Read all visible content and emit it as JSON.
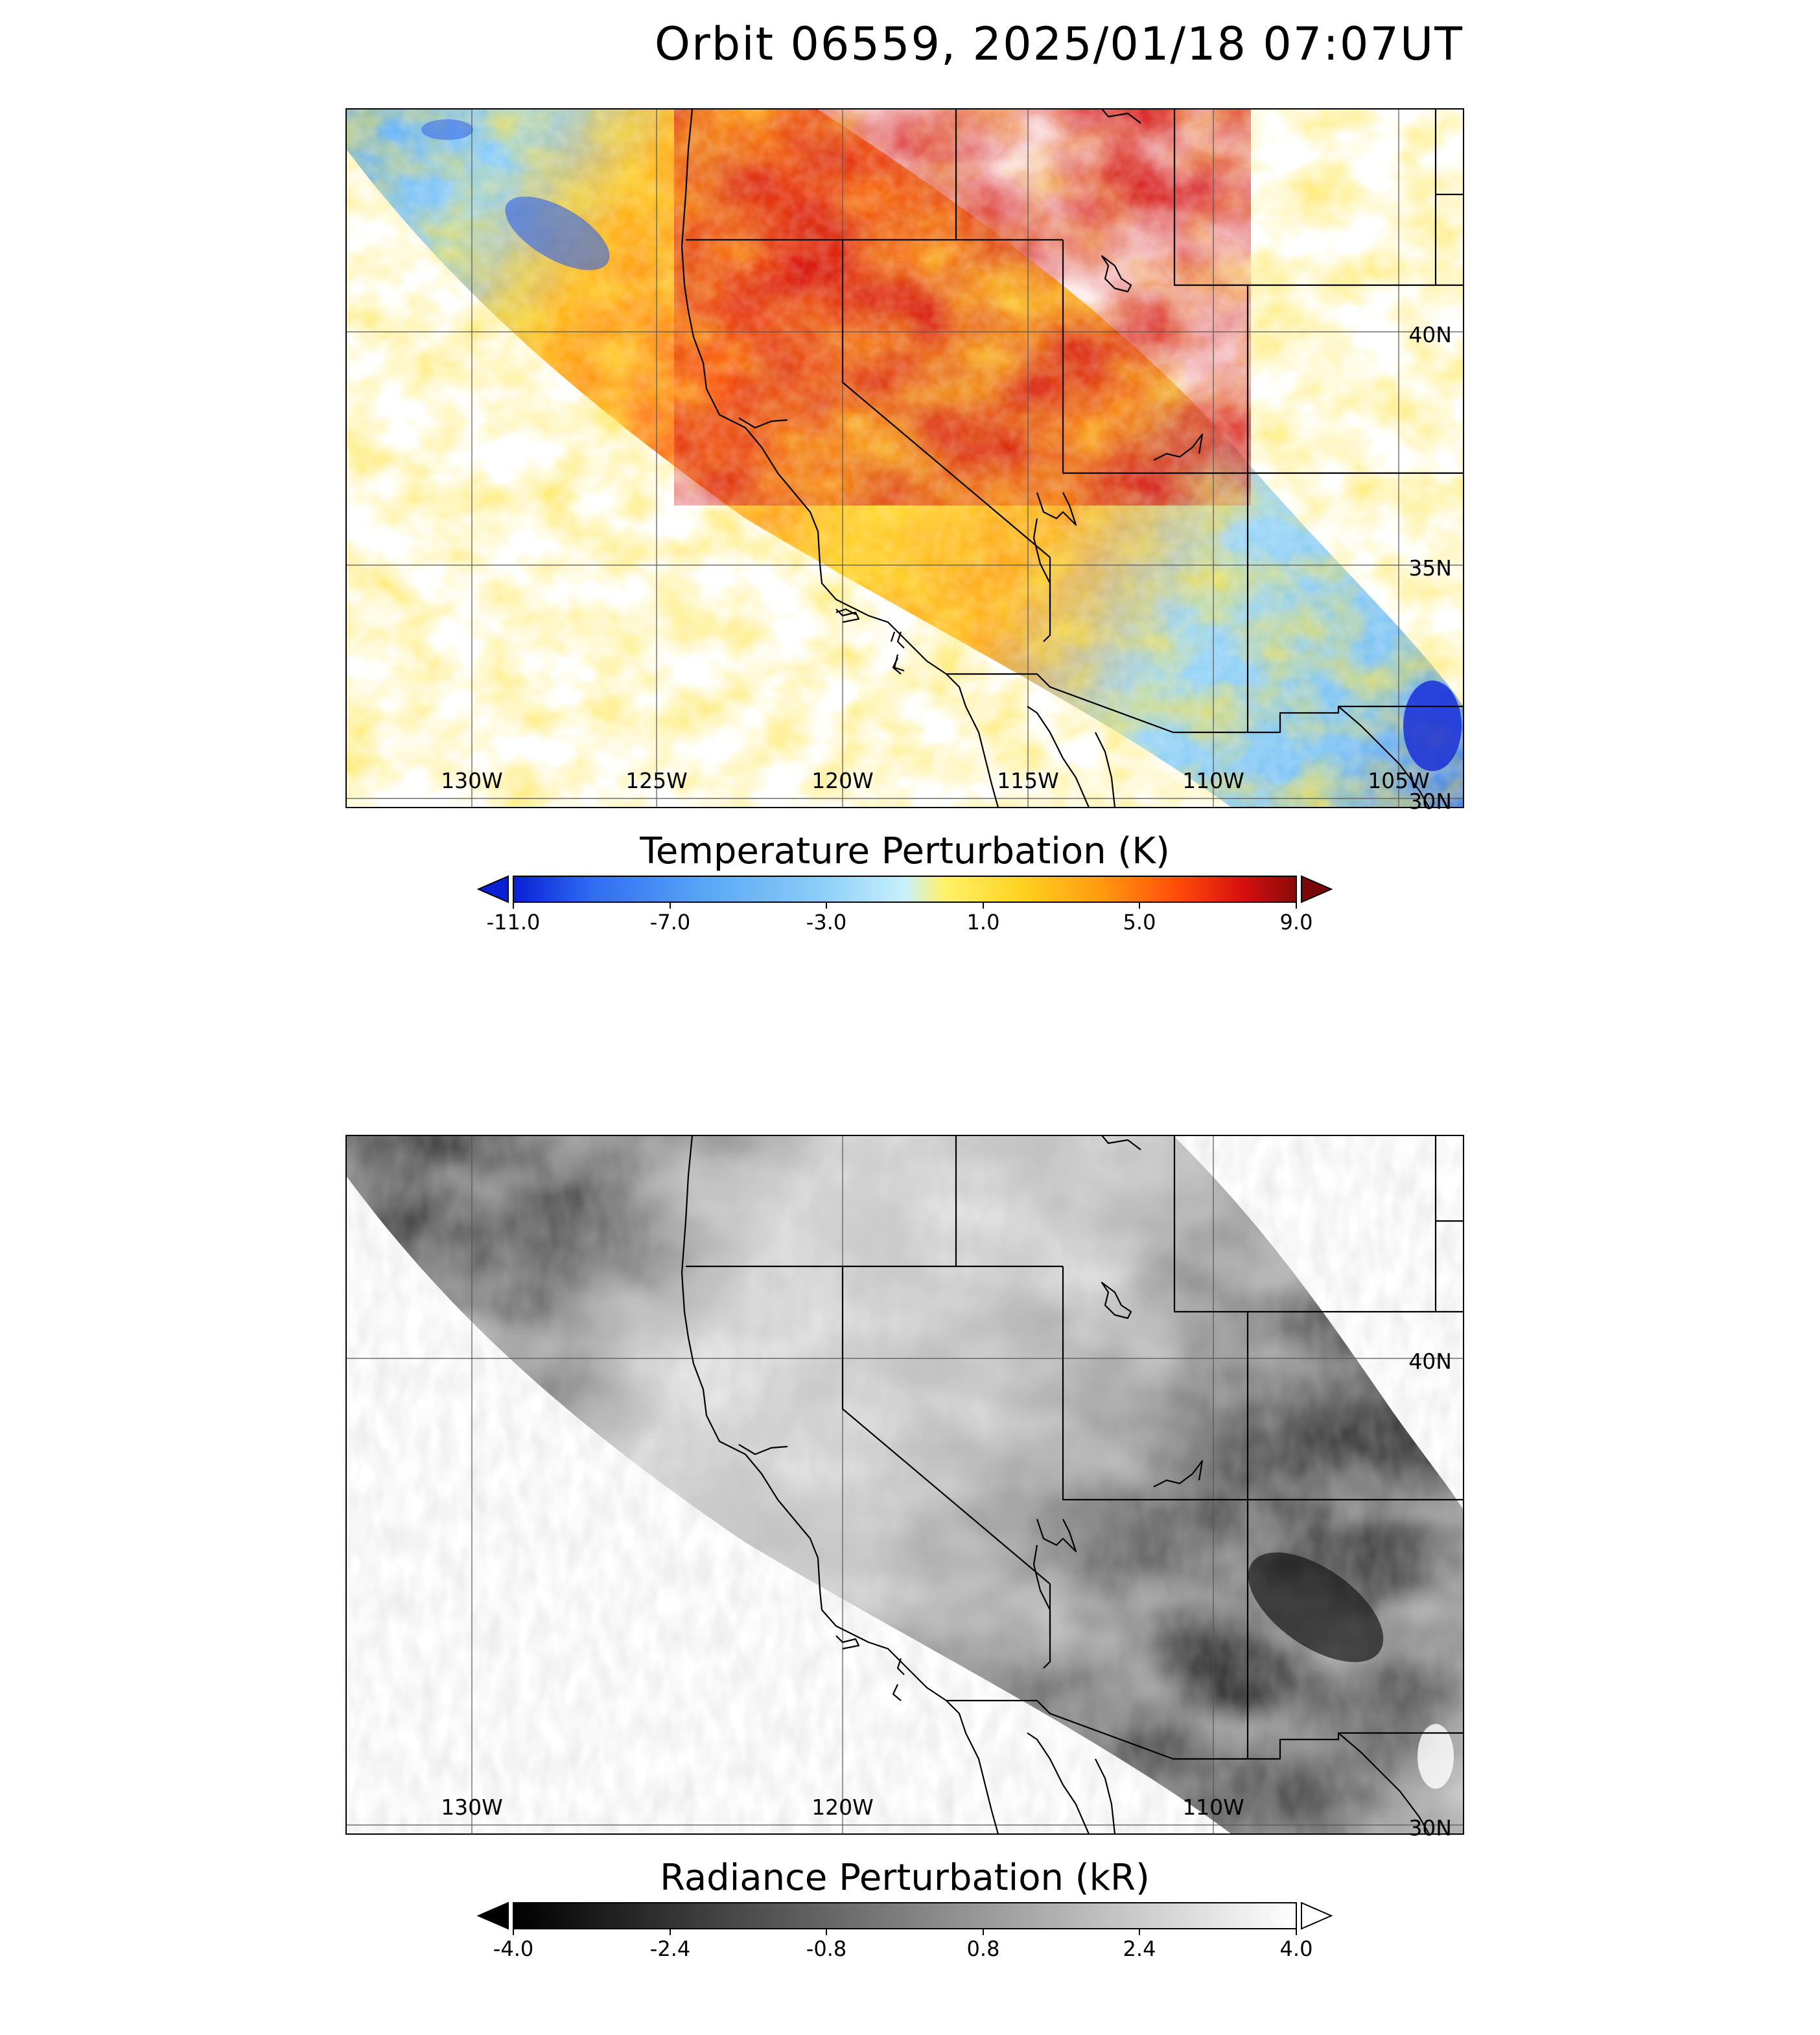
{
  "figure": {
    "title": "Orbit 06559, 2025/01/18 07:07UT"
  },
  "colors": {
    "temp_gradient": [
      "#0a1fd6",
      "#2f6cf2",
      "#5aa8f5",
      "#8fd0f8",
      "#c8f0fb",
      "#fff26a",
      "#ffd21f",
      "#ff9a10",
      "#ff4a0a",
      "#d81010",
      "#8a0a0a"
    ],
    "temp_under": "#0a1fd6",
    "temp_over": "#7a0808",
    "rad_gradient": [
      "#000000",
      "#ffffff"
    ],
    "rad_under": "#000000",
    "rad_over": "#ffffff"
  },
  "chart_data": [
    {
      "type": "heatmap",
      "title": "",
      "panel": "temperature",
      "colorbar_label": "Temperature Perturbation (K)",
      "colorbar_ticks": [
        "-11.0",
        "-7.0",
        "-3.0",
        "1.0",
        "5.0",
        "9.0"
      ],
      "colorbar_range": [
        -11.0,
        9.0
      ],
      "colorbar_extend": "both",
      "lon_ticks": [
        "130W",
        "125W",
        "120W",
        "115W",
        "110W",
        "105W"
      ],
      "lat_ticks": [
        "40N",
        "35N",
        "30N"
      ],
      "lon_range": [
        -133.4,
        -103.2
      ],
      "lat_range": [
        30.0,
        44.7
      ],
      "swath_values": "perturbations roughly -11 to +9 K; warm (+5 to +9 K) over northern California/Oregon/Nevada, cool (-3 to -9 K) over Pacific and southeastern swath edge"
    },
    {
      "type": "heatmap",
      "title": "",
      "panel": "radiance",
      "colorbar_label": "Radiance Perturbation (kR)",
      "colorbar_ticks": [
        "-4.0",
        "-2.4",
        "-0.8",
        "0.8",
        "2.4",
        "4.0"
      ],
      "colorbar_range": [
        -4.0,
        4.0
      ],
      "colorbar_extend": "both",
      "lon_ticks": [
        "130W",
        "120W",
        "110W"
      ],
      "lat_ticks": [
        "40N",
        "30N"
      ],
      "lon_range": [
        -133.4,
        -103.2
      ],
      "lat_range": [
        30.0,
        44.7
      ],
      "swath_values": "perturbations roughly -4 to +4 kR; dark (negative) over Pacific and southeast Utah/Arizona, bright (positive) over northern California/Nevada"
    }
  ]
}
